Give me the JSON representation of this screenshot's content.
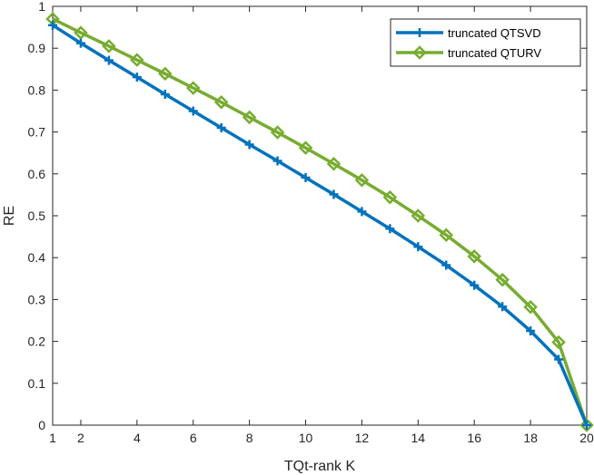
{
  "chart_data": {
    "type": "line",
    "title": "",
    "xlabel": "TQt-rank K",
    "ylabel": "RE",
    "xlim": [
      1,
      20
    ],
    "ylim": [
      0,
      1
    ],
    "xticks": [
      1,
      2,
      4,
      6,
      8,
      10,
      12,
      14,
      16,
      18,
      20
    ],
    "yticks": [
      0,
      0.1,
      0.2,
      0.3,
      0.4,
      0.5,
      0.6,
      0.7,
      0.8,
      0.9,
      1
    ],
    "grid": false,
    "legend_position": "top-right",
    "x": [
      1,
      2,
      3,
      4,
      5,
      6,
      7,
      8,
      9,
      10,
      11,
      12,
      13,
      14,
      15,
      16,
      17,
      18,
      19,
      20
    ],
    "series": [
      {
        "name": "truncated QTSVD",
        "color": "#0072BD",
        "marker": "plus",
        "values": [
          0.955,
          0.912,
          0.871,
          0.831,
          0.79,
          0.75,
          0.71,
          0.67,
          0.631,
          0.591,
          0.551,
          0.51,
          0.469,
          0.426,
          0.382,
          0.334,
          0.283,
          0.225,
          0.157,
          0.0
        ]
      },
      {
        "name": "truncated QTURV",
        "color": "#77AC30",
        "marker": "diamond",
        "values": [
          0.97,
          0.937,
          0.905,
          0.872,
          0.839,
          0.805,
          0.771,
          0.735,
          0.699,
          0.662,
          0.624,
          0.585,
          0.544,
          0.5,
          0.454,
          0.403,
          0.347,
          0.282,
          0.198,
          0.0
        ]
      }
    ]
  }
}
